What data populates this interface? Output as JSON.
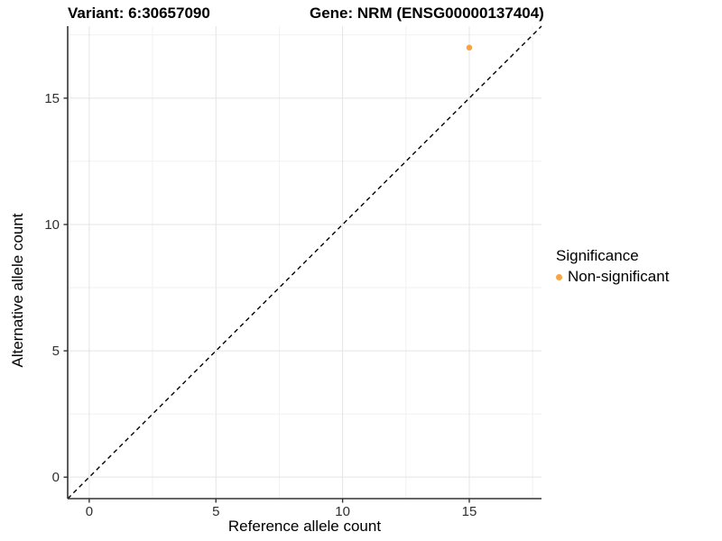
{
  "chart_data": {
    "type": "scatter",
    "title_left": "Variant: 6:30657090",
    "title_right": "Gene: NRM (ENSG00000137404)",
    "xlabel": "Reference allele count",
    "ylabel": "Alternative allele count",
    "xlim": [
      -0.85,
      17.85
    ],
    "ylim": [
      -0.85,
      17.85
    ],
    "xticks": [
      0,
      5,
      10,
      15
    ],
    "yticks": [
      0,
      5,
      10,
      15
    ],
    "minor_xticks": [
      2.5,
      7.5,
      12.5,
      17.5
    ],
    "minor_yticks": [
      2.5,
      7.5,
      12.5,
      17.5
    ],
    "grid": true,
    "reference_line": {
      "kind": "diagonal-identity",
      "style": "dashed",
      "color": "#000000"
    },
    "series": [
      {
        "name": "Non-significant",
        "color": "#F8A545",
        "points": [
          {
            "x": 15,
            "y": 17
          }
        ]
      }
    ],
    "legend": {
      "title": "Significance",
      "position": "right",
      "items": [
        {
          "label": "Non-significant",
          "color": "#F8A545"
        }
      ]
    },
    "colors": {
      "axis_line": "#333333",
      "tick_label": "#303030",
      "grid_major": "#e4e4e4",
      "grid_minor": "#f1f1f1",
      "background": "#ffffff"
    }
  }
}
